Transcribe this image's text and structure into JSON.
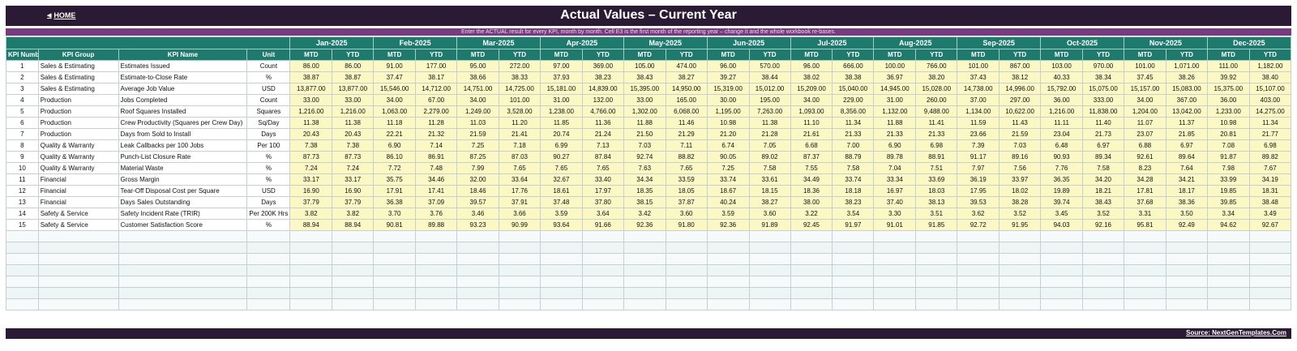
{
  "header": {
    "home_label": "HOME",
    "title": "Actual Values  –  Current Year",
    "subtitle": "Enter the ACTUAL result for every KPI, month by month. Cell E3 is the first month of the reporting year – change it and the whole workbook re-bases."
  },
  "table": {
    "col_headers": {
      "kpi_number": "KPI Number",
      "kpi_group": "KPI Group",
      "kpi_name": "KPI Name",
      "unit": "Unit",
      "mtd": "MTD",
      "ytd": "YTD"
    },
    "months": [
      "Jan-2025",
      "Feb-2025",
      "Mar-2025",
      "Apr-2025",
      "May-2025",
      "Jun-2025",
      "Jul-2025",
      "Aug-2025",
      "Sep-2025",
      "Oct-2025",
      "Nov-2025",
      "Dec-2025"
    ],
    "rows": [
      {
        "num": "1",
        "group": "Sales & Estimating",
        "name": "Estimates Issued",
        "unit": "Count",
        "values": [
          "86.00",
          "86.00",
          "91.00",
          "177.00",
          "95.00",
          "272.00",
          "97.00",
          "369.00",
          "105.00",
          "474.00",
          "96.00",
          "570.00",
          "96.00",
          "666.00",
          "100.00",
          "766.00",
          "101.00",
          "867.00",
          "103.00",
          "970.00",
          "101.00",
          "1,071.00",
          "111.00",
          "1,182.00"
        ]
      },
      {
        "num": "2",
        "group": "Sales & Estimating",
        "name": "Estimate-to-Close Rate",
        "unit": "%",
        "values": [
          "38.87",
          "38.87",
          "37.47",
          "38.17",
          "38.66",
          "38.33",
          "37.93",
          "38.23",
          "38.43",
          "38.27",
          "39.27",
          "38.44",
          "38.02",
          "38.38",
          "36.97",
          "38.20",
          "37.43",
          "38.12",
          "40.33",
          "38.34",
          "37.45",
          "38.26",
          "39.92",
          "38.40"
        ]
      },
      {
        "num": "3",
        "group": "Sales & Estimating",
        "name": "Average Job Value",
        "unit": "USD",
        "values": [
          "13,877.00",
          "13,877.00",
          "15,546.00",
          "14,712.00",
          "14,751.00",
          "14,725.00",
          "15,181.00",
          "14,839.00",
          "15,395.00",
          "14,950.00",
          "15,319.00",
          "15,012.00",
          "15,209.00",
          "15,040.00",
          "14,945.00",
          "15,028.00",
          "14,738.00",
          "14,996.00",
          "15,792.00",
          "15,075.00",
          "15,157.00",
          "15,083.00",
          "15,375.00",
          "15,107.00"
        ]
      },
      {
        "num": "4",
        "group": "Production",
        "name": "Jobs Completed",
        "unit": "Count",
        "values": [
          "33.00",
          "33.00",
          "34.00",
          "67.00",
          "34.00",
          "101.00",
          "31.00",
          "132.00",
          "33.00",
          "165.00",
          "30.00",
          "195.00",
          "34.00",
          "229.00",
          "31.00",
          "260.00",
          "37.00",
          "297.00",
          "36.00",
          "333.00",
          "34.00",
          "367.00",
          "36.00",
          "403.00"
        ]
      },
      {
        "num": "5",
        "group": "Production",
        "name": "Roof Squares Installed",
        "unit": "Squares",
        "values": [
          "1,216.00",
          "1,216.00",
          "1,063.00",
          "2,279.00",
          "1,249.00",
          "3,528.00",
          "1,238.00",
          "4,766.00",
          "1,302.00",
          "6,068.00",
          "1,195.00",
          "7,263.00",
          "1,093.00",
          "8,356.00",
          "1,132.00",
          "9,488.00",
          "1,134.00",
          "10,622.00",
          "1,216.00",
          "11,838.00",
          "1,204.00",
          "13,042.00",
          "1,233.00",
          "14,275.00"
        ]
      },
      {
        "num": "6",
        "group": "Production",
        "name": "Crew Productivity (Squares per Crew Day)",
        "unit": "Sq/Day",
        "values": [
          "11.38",
          "11.38",
          "11.18",
          "11.28",
          "11.03",
          "11.20",
          "11.85",
          "11.36",
          "11.88",
          "11.46",
          "10.98",
          "11.38",
          "11.10",
          "11.34",
          "11.88",
          "11.41",
          "11.59",
          "11.43",
          "11.11",
          "11.40",
          "11.07",
          "11.37",
          "10.98",
          "11.34"
        ]
      },
      {
        "num": "7",
        "group": "Production",
        "name": "Days from Sold to Install",
        "unit": "Days",
        "values": [
          "20.43",
          "20.43",
          "22.21",
          "21.32",
          "21.59",
          "21.41",
          "20.74",
          "21.24",
          "21.50",
          "21.29",
          "21.20",
          "21.28",
          "21.61",
          "21.33",
          "21.33",
          "21.33",
          "23.66",
          "21.59",
          "23.04",
          "21.73",
          "23.07",
          "21.85",
          "20.81",
          "21.77"
        ]
      },
      {
        "num": "8",
        "group": "Quality & Warranty",
        "name": "Leak Callbacks per 100 Jobs",
        "unit": "Per 100",
        "values": [
          "7.38",
          "7.38",
          "6.90",
          "7.14",
          "7.25",
          "7.18",
          "6.99",
          "7.13",
          "7.03",
          "7.11",
          "6.74",
          "7.05",
          "6.68",
          "7.00",
          "6.90",
          "6.98",
          "7.39",
          "7.03",
          "6.48",
          "6.97",
          "6.88",
          "6.97",
          "7.08",
          "6.98"
        ]
      },
      {
        "num": "9",
        "group": "Quality & Warranty",
        "name": "Punch-List Closure Rate",
        "unit": "%",
        "values": [
          "87.73",
          "87.73",
          "86.10",
          "86.91",
          "87.25",
          "87.03",
          "90.27",
          "87.84",
          "92.74",
          "88.82",
          "90.05",
          "89.02",
          "87.37",
          "88.79",
          "89.78",
          "88.91",
          "91.17",
          "89.16",
          "90.93",
          "89.34",
          "92.61",
          "89.64",
          "91.87",
          "89.82"
        ]
      },
      {
        "num": "10",
        "group": "Quality & Warranty",
        "name": "Material Waste",
        "unit": "%",
        "values": [
          "7.24",
          "7.24",
          "7.72",
          "7.48",
          "7.99",
          "7.65",
          "7.65",
          "7.65",
          "7.63",
          "7.65",
          "7.25",
          "7.58",
          "7.55",
          "7.58",
          "7.04",
          "7.51",
          "7.97",
          "7.56",
          "7.76",
          "7.58",
          "8.23",
          "7.64",
          "7.98",
          "7.67"
        ]
      },
      {
        "num": "11",
        "group": "Financial",
        "name": "Gross Margin",
        "unit": "%",
        "values": [
          "33.17",
          "33.17",
          "35.75",
          "34.46",
          "32.00",
          "33.64",
          "32.67",
          "33.40",
          "34.34",
          "33.59",
          "33.74",
          "33.61",
          "34.49",
          "33.74",
          "33.34",
          "33.69",
          "36.19",
          "33.97",
          "36.35",
          "34.20",
          "34.28",
          "34.21",
          "33.99",
          "34.19"
        ]
      },
      {
        "num": "12",
        "group": "Financial",
        "name": "Tear-Off Disposal Cost per Square",
        "unit": "USD",
        "values": [
          "16.90",
          "16.90",
          "17.91",
          "17.41",
          "18.46",
          "17.76",
          "18.61",
          "17.97",
          "18.35",
          "18.05",
          "18.67",
          "18.15",
          "18.36",
          "18.18",
          "16.97",
          "18.03",
          "17.95",
          "18.02",
          "19.89",
          "18.21",
          "17.81",
          "18.17",
          "19.85",
          "18.31"
        ]
      },
      {
        "num": "13",
        "group": "Financial",
        "name": "Days Sales Outstanding",
        "unit": "Days",
        "values": [
          "37.79",
          "37.79",
          "36.38",
          "37.09",
          "39.57",
          "37.91",
          "37.48",
          "37.80",
          "38.15",
          "37.87",
          "40.24",
          "38.27",
          "38.00",
          "38.23",
          "37.40",
          "38.13",
          "39.53",
          "38.28",
          "39.74",
          "38.43",
          "37.68",
          "38.36",
          "39.85",
          "38.48"
        ]
      },
      {
        "num": "14",
        "group": "Safety & Service",
        "name": "Safety Incident Rate (TRIR)",
        "unit": "Per 200K Hrs",
        "values": [
          "3.82",
          "3.82",
          "3.70",
          "3.76",
          "3.46",
          "3.66",
          "3.59",
          "3.64",
          "3.42",
          "3.60",
          "3.59",
          "3.60",
          "3.22",
          "3.54",
          "3.30",
          "3.51",
          "3.62",
          "3.52",
          "3.45",
          "3.52",
          "3.31",
          "3.50",
          "3.34",
          "3.49"
        ]
      },
      {
        "num": "15",
        "group": "Safety & Service",
        "name": "Customer Satisfaction Score",
        "unit": "%",
        "values": [
          "88.94",
          "88.94",
          "90.81",
          "89.88",
          "93.23",
          "90.99",
          "93.64",
          "91.66",
          "92.36",
          "91.80",
          "92.36",
          "91.89",
          "92.45",
          "91.97",
          "91.01",
          "91.85",
          "92.72",
          "91.95",
          "94.03",
          "92.16",
          "95.81",
          "92.49",
          "94.62",
          "92.67"
        ]
      }
    ]
  },
  "footer": {
    "source_label": "Source: NextGenTemplates.Com"
  }
}
